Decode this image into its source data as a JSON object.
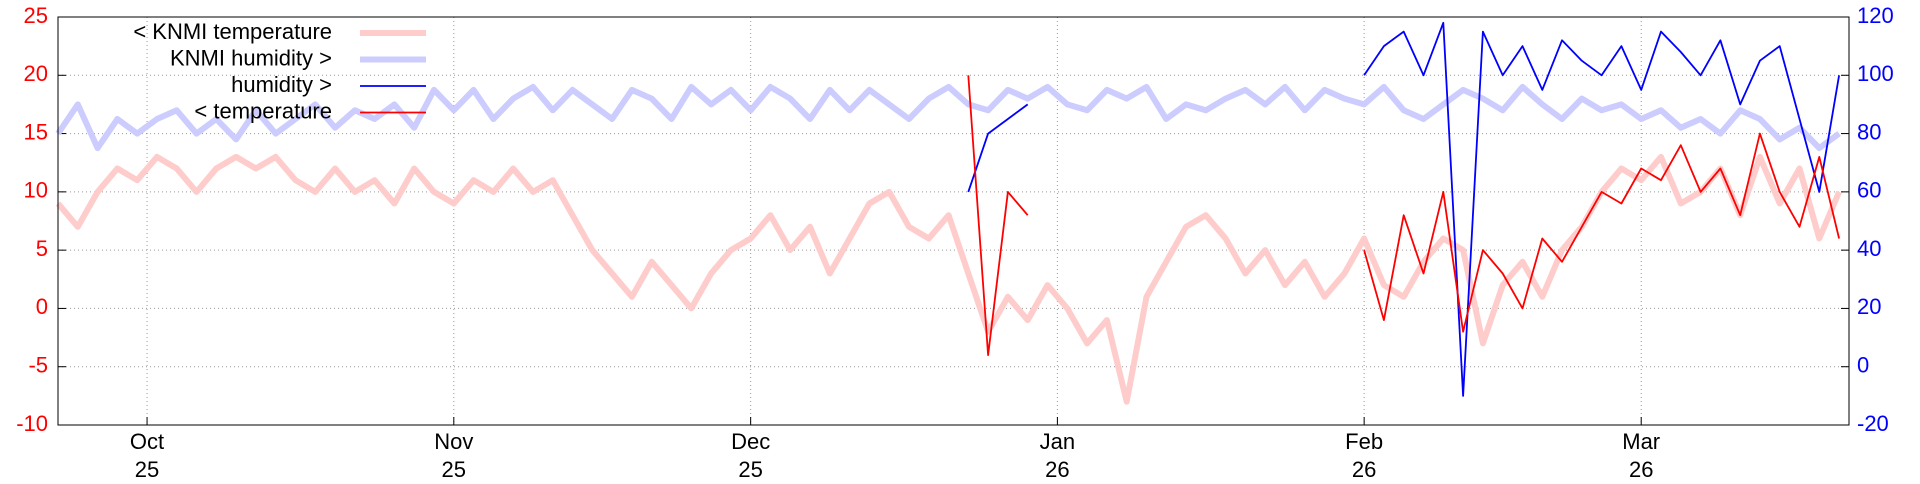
{
  "chart_data": {
    "type": "line",
    "x": [
      -9,
      -7,
      -5,
      -3,
      -1,
      1,
      3,
      5,
      7,
      9,
      11,
      13,
      15,
      17,
      19,
      21,
      23,
      25,
      27,
      29,
      31,
      33,
      35,
      37,
      39,
      41,
      43,
      45,
      47,
      49,
      51,
      53,
      55,
      57,
      59,
      61,
      63,
      65,
      67,
      69,
      71,
      73,
      75,
      77,
      79,
      81,
      83,
      85,
      87,
      89,
      91,
      93,
      95,
      97,
      99,
      101,
      103,
      105,
      107,
      109,
      111,
      113,
      115,
      117,
      119,
      121,
      123,
      125,
      127,
      129,
      131,
      133,
      135,
      137,
      139,
      141,
      143,
      145,
      147,
      149,
      151,
      153,
      155,
      157,
      159,
      161,
      163,
      165,
      167,
      169,
      171
    ],
    "xlim": [
      -9,
      172
    ],
    "xticks": [
      {
        "value": 0,
        "label": "Oct 25"
      },
      {
        "value": 31,
        "label": "Nov 25"
      },
      {
        "value": 61,
        "label": "Dec 25"
      },
      {
        "value": 92,
        "label": "Jan 26"
      },
      {
        "value": 123,
        "label": "Feb 26"
      },
      {
        "value": 151,
        "label": "Mar 26"
      }
    ],
    "ylim": [
      -10,
      25
    ],
    "yticks": [
      -10,
      -5,
      0,
      5,
      10,
      15,
      20,
      25
    ],
    "y2lim": [
      -20,
      120
    ],
    "y2ticks": [
      -20,
      0,
      20,
      40,
      60,
      80,
      100,
      120
    ],
    "grid": true,
    "legend": "upper left",
    "series": [
      {
        "name": "< KNMI temperature",
        "color": "#ffcccc",
        "width": 6,
        "values": [
          9,
          7,
          10,
          12,
          11,
          13,
          12,
          10,
          12,
          13,
          12,
          13,
          11,
          10,
          12,
          10,
          11,
          9,
          12,
          10,
          9,
          11,
          10,
          12,
          10,
          11,
          8,
          5,
          3,
          1,
          4,
          2,
          0,
          3,
          5,
          6,
          8,
          5,
          7,
          3,
          6,
          9,
          10,
          7,
          6,
          8,
          3,
          -2,
          1,
          -1,
          2,
          0,
          -3,
          -1,
          -8,
          1,
          4,
          7,
          8,
          6,
          3,
          5,
          2,
          4,
          1,
          3,
          6,
          2,
          1,
          4,
          6,
          5,
          -3,
          2,
          4,
          1,
          5,
          7,
          10,
          12,
          11,
          13,
          9,
          10,
          12,
          8,
          13,
          9,
          12,
          6,
          10
        ]
      },
      {
        "name": "KNMI humidity >",
        "color": "#ccccff",
        "width": 6,
        "axis": "y2",
        "values": [
          80,
          90,
          75,
          85,
          80,
          85,
          88,
          80,
          85,
          78,
          88,
          80,
          85,
          90,
          82,
          88,
          85,
          90,
          82,
          95,
          88,
          95,
          85,
          92,
          96,
          88,
          95,
          90,
          85,
          95,
          92,
          85,
          96,
          90,
          95,
          88,
          96,
          92,
          85,
          95,
          88,
          95,
          90,
          85,
          92,
          96,
          90,
          88,
          95,
          92,
          96,
          90,
          88,
          95,
          92,
          96,
          85,
          90,
          88,
          92,
          95,
          90,
          96,
          88,
          95,
          92,
          90,
          96,
          88,
          85,
          90,
          95,
          92,
          88,
          96,
          90,
          85,
          92,
          88,
          90,
          85,
          88,
          82,
          85,
          80,
          88,
          85,
          78,
          82,
          75,
          80
        ]
      },
      {
        "name": "humidity >",
        "color": "#0000ff",
        "width": 1.8,
        "axis": "y2",
        "values": [
          null,
          null,
          null,
          null,
          null,
          null,
          null,
          null,
          null,
          null,
          null,
          null,
          null,
          null,
          null,
          null,
          null,
          null,
          null,
          null,
          null,
          null,
          null,
          null,
          null,
          null,
          null,
          null,
          null,
          null,
          null,
          null,
          null,
          null,
          null,
          null,
          null,
          null,
          null,
          null,
          null,
          null,
          null,
          null,
          null,
          null,
          60,
          80,
          85,
          90,
          null,
          null,
          null,
          null,
          null,
          null,
          null,
          null,
          null,
          null,
          null,
          null,
          null,
          null,
          null,
          null,
          100,
          110,
          115,
          100,
          118,
          -10,
          115,
          100,
          110,
          95,
          112,
          105,
          100,
          110,
          95,
          115,
          108,
          100,
          112,
          90,
          105,
          110,
          85,
          60,
          100
        ]
      },
      {
        "name": "< temperature",
        "color": "#ff0000",
        "width": 1.8,
        "values": [
          null,
          null,
          null,
          null,
          null,
          null,
          null,
          null,
          null,
          null,
          null,
          null,
          null,
          null,
          null,
          null,
          null,
          null,
          null,
          null,
          null,
          null,
          null,
          null,
          null,
          null,
          null,
          null,
          null,
          null,
          null,
          null,
          null,
          null,
          null,
          null,
          null,
          null,
          null,
          null,
          null,
          null,
          null,
          null,
          null,
          null,
          20,
          -4,
          10,
          8,
          null,
          null,
          null,
          null,
          null,
          null,
          null,
          null,
          null,
          null,
          null,
          null,
          null,
          null,
          null,
          null,
          5,
          -1,
          8,
          3,
          10,
          -2,
          5,
          3,
          0,
          6,
          4,
          7,
          10,
          9,
          12,
          11,
          14,
          10,
          12,
          8,
          15,
          10,
          7,
          13,
          6
        ]
      }
    ]
  }
}
